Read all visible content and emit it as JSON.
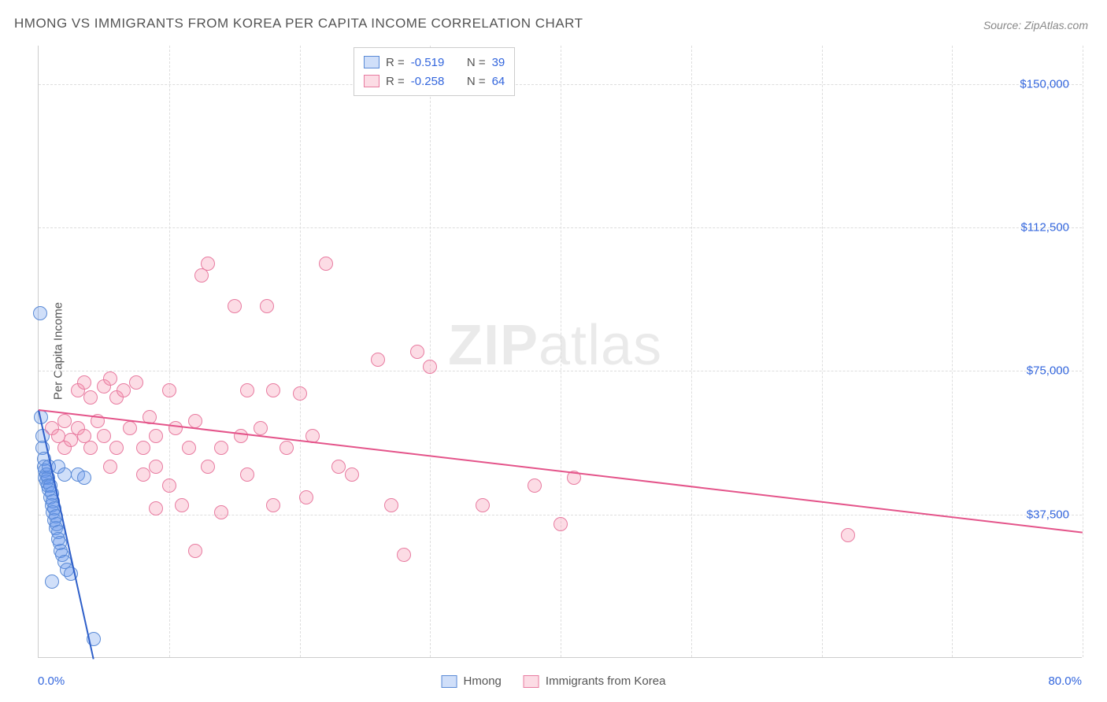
{
  "title": "HMONG VS IMMIGRANTS FROM KOREA PER CAPITA INCOME CORRELATION CHART",
  "source": "Source: ZipAtlas.com",
  "watermark_bold": "ZIP",
  "watermark_rest": "atlas",
  "y_axis_label": "Per Capita Income",
  "chart": {
    "type": "scatter",
    "background_color": "#ffffff",
    "grid_color": "#dddddd",
    "axis_color": "#cccccc",
    "tick_label_color": "#3366dd",
    "text_color": "#555555",
    "xlim": [
      0,
      80
    ],
    "ylim": [
      0,
      160000
    ],
    "x_ticks": [
      0,
      10,
      20,
      30,
      40,
      50,
      60,
      70,
      80
    ],
    "y_ticks": [
      37500,
      75000,
      112500,
      150000
    ],
    "y_tick_labels": [
      "$37,500",
      "$75,000",
      "$112,500",
      "$150,000"
    ],
    "x_tick_labels_ends": {
      "left": "0.0%",
      "right": "80.0%"
    },
    "marker_radius": 9,
    "marker_stroke_width": 1.5,
    "series": [
      {
        "name": "Hmong",
        "color_fill": "rgba(100,150,235,0.30)",
        "color_stroke": "#5a8ad6",
        "trend_color": "#2e5fc9",
        "R": "-0.519",
        "N": "39",
        "trend": {
          "x1": 0,
          "y1": 65000,
          "x2": 4.2,
          "y2": 0
        },
        "points": [
          [
            0.1,
            90000
          ],
          [
            0.2,
            63000
          ],
          [
            0.3,
            58000
          ],
          [
            0.3,
            55000
          ],
          [
            0.4,
            52000
          ],
          [
            0.4,
            50000
          ],
          [
            0.5,
            49000
          ],
          [
            0.5,
            47000
          ],
          [
            0.6,
            48000
          ],
          [
            0.6,
            46000
          ],
          [
            0.7,
            47000
          ],
          [
            0.7,
            45000
          ],
          [
            0.8,
            50000
          ],
          [
            0.8,
            44000
          ],
          [
            0.9,
            45000
          ],
          [
            0.9,
            42000
          ],
          [
            1.0,
            43000
          ],
          [
            1.0,
            40000
          ],
          [
            1.1,
            41000
          ],
          [
            1.1,
            38000
          ],
          [
            1.2,
            39000
          ],
          [
            1.2,
            36000
          ],
          [
            1.3,
            37000
          ],
          [
            1.3,
            34000
          ],
          [
            1.4,
            35000
          ],
          [
            1.5,
            33000
          ],
          [
            1.5,
            31000
          ],
          [
            1.6,
            30000
          ],
          [
            1.7,
            28000
          ],
          [
            1.8,
            27000
          ],
          [
            1.5,
            50000
          ],
          [
            2.0,
            48000
          ],
          [
            2.0,
            25000
          ],
          [
            2.2,
            23000
          ],
          [
            2.5,
            22000
          ],
          [
            1.0,
            20000
          ],
          [
            3.0,
            48000
          ],
          [
            3.5,
            47000
          ],
          [
            4.2,
            5000
          ]
        ]
      },
      {
        "name": "Immigrants from Korea",
        "color_fill": "rgba(245,140,170,0.30)",
        "color_stroke": "#e87ba0",
        "trend_color": "#e4548a",
        "R": "-0.258",
        "N": "64",
        "trend": {
          "x1": 0,
          "y1": 65000,
          "x2": 80,
          "y2": 33000
        },
        "points": [
          [
            1.0,
            60000
          ],
          [
            1.5,
            58000
          ],
          [
            2.0,
            62000
          ],
          [
            2.0,
            55000
          ],
          [
            2.5,
            57000
          ],
          [
            3.0,
            70000
          ],
          [
            3.0,
            60000
          ],
          [
            3.5,
            72000
          ],
          [
            3.5,
            58000
          ],
          [
            4.0,
            68000
          ],
          [
            4.0,
            55000
          ],
          [
            4.5,
            62000
          ],
          [
            5.0,
            71000
          ],
          [
            5.0,
            58000
          ],
          [
            5.5,
            73000
          ],
          [
            5.5,
            50000
          ],
          [
            6.0,
            68000
          ],
          [
            6.0,
            55000
          ],
          [
            6.5,
            70000
          ],
          [
            7.0,
            60000
          ],
          [
            7.5,
            72000
          ],
          [
            8.0,
            55000
          ],
          [
            8.0,
            48000
          ],
          [
            8.5,
            63000
          ],
          [
            9.0,
            50000
          ],
          [
            9.0,
            58000
          ],
          [
            9.0,
            39000
          ],
          [
            10.0,
            70000
          ],
          [
            10.0,
            45000
          ],
          [
            10.5,
            60000
          ],
          [
            11.0,
            40000
          ],
          [
            11.5,
            55000
          ],
          [
            12.0,
            62000
          ],
          [
            12.0,
            28000
          ],
          [
            12.5,
            100000
          ],
          [
            13.0,
            103000
          ],
          [
            13.0,
            50000
          ],
          [
            14.0,
            55000
          ],
          [
            14.0,
            38000
          ],
          [
            15.0,
            92000
          ],
          [
            15.5,
            58000
          ],
          [
            16.0,
            70000
          ],
          [
            16.0,
            48000
          ],
          [
            17.0,
            60000
          ],
          [
            17.5,
            92000
          ],
          [
            18.0,
            70000
          ],
          [
            18.0,
            40000
          ],
          [
            19.0,
            55000
          ],
          [
            20.0,
            69000
          ],
          [
            20.5,
            42000
          ],
          [
            21.0,
            58000
          ],
          [
            22.0,
            103000
          ],
          [
            23.0,
            50000
          ],
          [
            24.0,
            48000
          ],
          [
            26.0,
            78000
          ],
          [
            27.0,
            40000
          ],
          [
            28.0,
            27000
          ],
          [
            29.0,
            80000
          ],
          [
            30.0,
            76000
          ],
          [
            34.0,
            40000
          ],
          [
            38.0,
            45000
          ],
          [
            40.0,
            35000
          ],
          [
            41.0,
            47000
          ],
          [
            62.0,
            32000
          ]
        ]
      }
    ]
  },
  "legend_top": {
    "r_label": "R =",
    "n_label": "N ="
  },
  "bottom_legend": {
    "items": [
      "Hmong",
      "Immigrants from Korea"
    ]
  }
}
